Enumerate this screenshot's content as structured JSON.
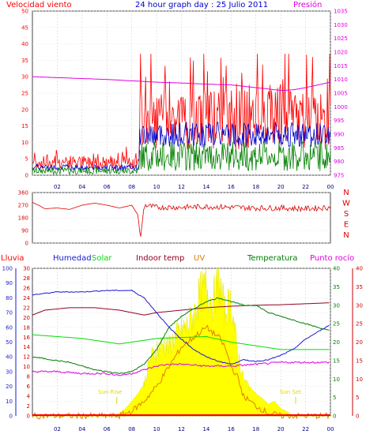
{
  "header": {
    "left_label": "Velocidad viento",
    "title": "24 hour graph day : 25 Julio 2011",
    "right_label": "Presión"
  },
  "legend": {
    "lluvia": "Lluvia",
    "humedad": "Humedad",
    "solar": "Solar",
    "indoor": "Indoor temp",
    "uv": "UV",
    "temperatura": "Temperatura",
    "rocio": "Punto rocío"
  },
  "annotations": {
    "sun_rise": "Sun Rise",
    "sun_set": "Sun Set"
  },
  "colors": {
    "wind": "#ff0000",
    "gust_mean": "#0000cc",
    "wind_green": "#008000",
    "pressure": "#e000e0",
    "direction": "#dd0000",
    "humidity": "#1a1ad0",
    "solar": "#ffff00",
    "indoor": "#900020",
    "uv": "#e08000",
    "temperature": "#008000",
    "dewpoint": "#e000e0",
    "green_light": "#00dd00",
    "axis": "#444444"
  },
  "chart_data": [
    {
      "type": "line",
      "name": "wind-pressure",
      "x_ticks": [
        "02",
        "04",
        "06",
        "08",
        "10",
        "12",
        "14",
        "16",
        "18",
        "20",
        "22",
        "00"
      ],
      "left_axis": {
        "ticks": [
          0,
          5,
          10,
          15,
          20,
          25,
          30,
          35,
          40,
          45,
          50
        ],
        "ylim": [
          0,
          50
        ]
      },
      "right_axis": {
        "ticks": [
          975,
          980,
          985,
          990,
          995,
          1000,
          1005,
          1010,
          1015,
          1020,
          1025,
          1030,
          1035
        ],
        "ylim": [
          975,
          1035
        ]
      },
      "pressure": {
        "x": [
          0,
          3,
          6,
          8,
          10,
          12,
          14,
          16,
          18,
          19,
          20,
          21,
          22,
          23,
          24
        ],
        "y": [
          1011,
          1010.5,
          1010,
          1009.5,
          1009,
          1008.7,
          1008.3,
          1008,
          1007,
          1006.5,
          1006,
          1006.2,
          1007,
          1008,
          1009
        ]
      },
      "wind_base_regions": [
        {
          "from": 0,
          "to": 8.6,
          "level": 3
        },
        {
          "from": 8.6,
          "to": 24,
          "level": 13
        }
      ]
    },
    {
      "type": "line",
      "name": "wind-direction",
      "x_ticks": [
        "02",
        "04",
        "06",
        "08",
        "10",
        "12",
        "14",
        "16",
        "18",
        "20",
        "22",
        "00"
      ],
      "left_axis": {
        "ticks": [
          0,
          90,
          180,
          270,
          360
        ],
        "ylim": [
          0,
          360
        ]
      },
      "right_labels": [
        "N",
        "W",
        "S",
        "E",
        "N"
      ],
      "direction": {
        "x": [
          0,
          0.5,
          1,
          2,
          3,
          4,
          5,
          6,
          7,
          8,
          8.5,
          8.7,
          9,
          10,
          12,
          14,
          16,
          18,
          20,
          22,
          24
        ],
        "y": [
          290,
          270,
          245,
          250,
          240,
          270,
          285,
          270,
          250,
          270,
          200,
          30,
          270,
          255,
          255,
          260,
          255,
          250,
          250,
          245,
          255
        ]
      }
    },
    {
      "type": "line",
      "name": "climate",
      "x_ticks": [
        "02",
        "04",
        "06",
        "08",
        "10",
        "12",
        "14",
        "16",
        "18",
        "20",
        "22",
        "00"
      ],
      "axis_humidity": {
        "ticks": [
          0,
          10,
          20,
          30,
          40,
          50,
          60,
          70,
          80,
          90,
          100
        ],
        "ylim": [
          0,
          100
        ]
      },
      "axis_indoor": {
        "ticks": [
          0,
          2,
          4,
          6,
          8,
          10,
          12,
          14,
          16,
          18,
          20,
          22,
          24,
          26,
          28,
          30
        ],
        "ylim": [
          0,
          30
        ]
      },
      "axis_temp": {
        "ticks": [
          0,
          5,
          10,
          15,
          20,
          25,
          30,
          35,
          40
        ],
        "ylim": [
          0,
          40
        ]
      },
      "axis_dew": {
        "ticks": [
          0,
          5,
          10,
          15,
          20,
          25,
          30,
          35,
          40
        ],
        "ylim": [
          0,
          40
        ]
      },
      "humidity": {
        "x": [
          0,
          1,
          2,
          4,
          6,
          7,
          8,
          9,
          10,
          11,
          12,
          13,
          14,
          15,
          16,
          17,
          18,
          19,
          20,
          21,
          22,
          23,
          24
        ],
        "y": [
          82,
          83,
          84,
          84,
          85,
          85,
          85,
          80,
          70,
          60,
          52,
          45,
          40,
          37,
          35,
          38,
          37,
          38,
          41,
          45,
          52,
          57,
          62
        ]
      },
      "indoor": {
        "x": [
          0,
          1,
          3,
          5,
          7,
          8,
          9,
          10,
          12,
          14,
          16,
          18,
          20,
          22,
          24
        ],
        "y": [
          20.5,
          21.5,
          22,
          22,
          21.5,
          21,
          20.5,
          21,
          21.5,
          22,
          22.3,
          22.5,
          22.6,
          22.8,
          23
        ]
      },
      "temperature": {
        "x": [
          0,
          1,
          2,
          3,
          4,
          5,
          6,
          7,
          8,
          9,
          10,
          11,
          12,
          13,
          14,
          15,
          16,
          17,
          18,
          19,
          20,
          21,
          22,
          23,
          24
        ],
        "y": [
          16,
          15.5,
          15,
          14.5,
          13.5,
          12.5,
          12,
          11.5,
          12,
          14,
          18,
          24,
          27,
          29,
          31,
          32,
          31,
          30,
          30,
          28,
          27,
          26,
          25,
          24,
          23
        ]
      },
      "solar_line": {
        "x": [
          0,
          4,
          7,
          8,
          10,
          14,
          16,
          20,
          24
        ],
        "y": [
          22,
          21,
          19.5,
          20,
          21,
          21.5,
          20,
          18,
          18
        ]
      },
      "dewpoint": {
        "x": [
          0,
          2,
          4,
          6,
          7,
          8,
          9,
          10,
          11,
          12,
          14,
          16,
          18,
          20,
          22,
          24
        ],
        "y": [
          12,
          12,
          11.5,
          11.5,
          11,
          11.5,
          12.5,
          13.5,
          14,
          14,
          13.5,
          13.5,
          14,
          14.5,
          14.5,
          14.5
        ]
      },
      "solar_radiation": {
        "x": [
          0,
          6.5,
          7,
          7.5,
          8,
          8.5,
          9,
          9.5,
          10,
          10.5,
          11,
          11.5,
          12,
          12.5,
          13,
          13.5,
          14,
          14.5,
          15,
          15.5,
          16,
          16.5,
          17,
          17.5,
          18,
          18.5,
          19,
          19.5,
          20,
          20.5,
          21,
          24
        ],
        "y": [
          0,
          0,
          2,
          5,
          10,
          15,
          22,
          40,
          46,
          50,
          48,
          55,
          60,
          62,
          70,
          85,
          90,
          78,
          95,
          72,
          80,
          45,
          25,
          20,
          15,
          12,
          8,
          10,
          5,
          3,
          0,
          0
        ]
      },
      "uv": {
        "x": [
          0,
          7,
          8,
          9,
          10,
          11,
          12,
          13,
          14,
          15,
          15.5,
          16,
          16.5,
          17,
          18,
          19,
          20,
          24
        ],
        "y": [
          0,
          0,
          0.5,
          1.5,
          3,
          5,
          7,
          8,
          9,
          8,
          7,
          5,
          4,
          2,
          1,
          0.3,
          0,
          0
        ]
      },
      "rain": 0,
      "sunrise": 6.8,
      "sunset": 21.2
    }
  ]
}
